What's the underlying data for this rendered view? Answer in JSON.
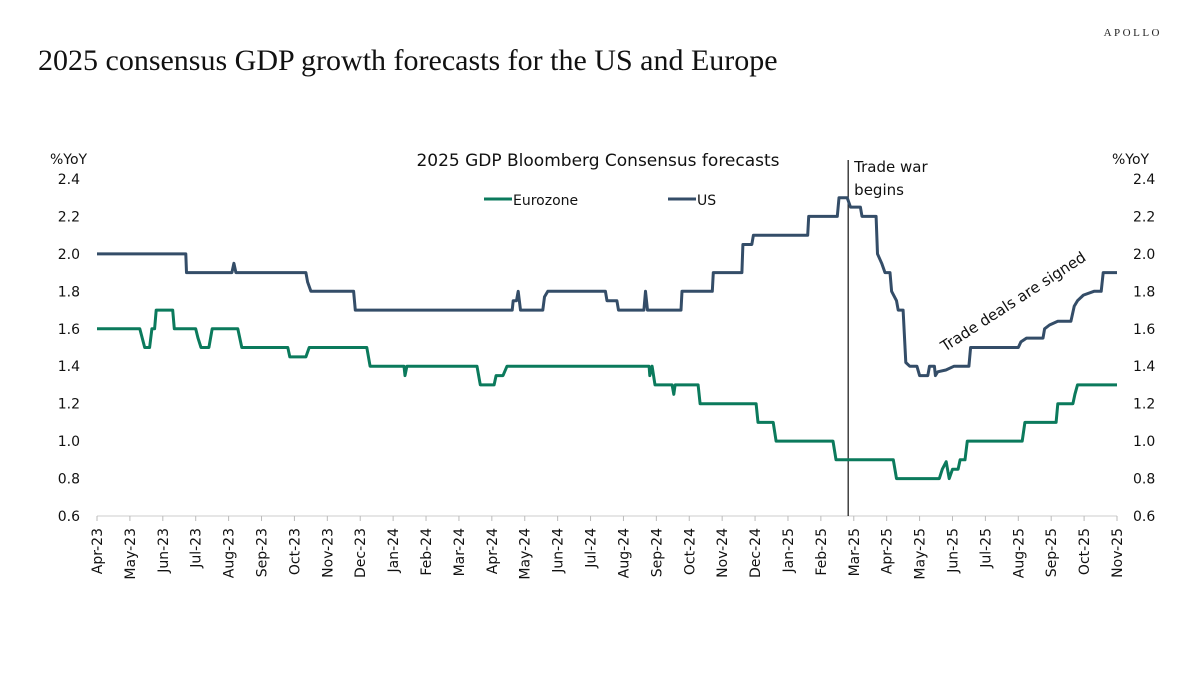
{
  "brand": "APOLLO",
  "title": "2025 consensus GDP growth forecasts for the US and Europe",
  "chart_data": {
    "type": "line",
    "title": "2025 GDP Bloomberg Consensus forecasts",
    "ylabel_left": "%YoY",
    "ylabel_right": "%YoY",
    "ylim": [
      0.6,
      2.4
    ],
    "yticks": [
      "0.6",
      "0.8",
      "1.0",
      "1.2",
      "1.4",
      "1.6",
      "1.8",
      "2.0",
      "2.2",
      "2.4"
    ],
    "categories": [
      "Apr-23",
      "May-23",
      "Jun-23",
      "Jul-23",
      "Aug-23",
      "Sep-23",
      "Oct-23",
      "Nov-23",
      "Dec-23",
      "Jan-24",
      "Feb-24",
      "Mar-24",
      "Apr-24",
      "May-24",
      "Jun-24",
      "Jul-24",
      "Aug-24",
      "Sep-24",
      "Oct-24",
      "Nov-24",
      "Dec-24",
      "Jan-25",
      "Feb-25",
      "Mar-25",
      "Apr-25",
      "May-25",
      "Jun-25",
      "Jul-25",
      "Aug-25",
      "Sep-25",
      "Oct-25",
      "Nov-25"
    ],
    "x_note": "x values are months since Apr-23",
    "series": [
      {
        "name": "Eurozone",
        "color": "#0b7a5c",
        "points": [
          [
            0,
            1.6
          ],
          [
            1.3,
            1.6
          ],
          [
            1.45,
            1.5
          ],
          [
            1.6,
            1.5
          ],
          [
            1.67,
            1.6
          ],
          [
            1.75,
            1.6
          ],
          [
            1.8,
            1.7
          ],
          [
            2.3,
            1.7
          ],
          [
            2.35,
            1.6
          ],
          [
            3,
            1.6
          ],
          [
            3.07,
            1.55
          ],
          [
            3.16,
            1.5
          ],
          [
            3.4,
            1.5
          ],
          [
            3.5,
            1.6
          ],
          [
            4.28,
            1.6
          ],
          [
            4.4,
            1.5
          ],
          [
            5.8,
            1.5
          ],
          [
            5.86,
            1.45
          ],
          [
            6.35,
            1.45
          ],
          [
            6.45,
            1.5
          ],
          [
            8.2,
            1.5
          ],
          [
            8.3,
            1.4
          ],
          [
            9.33,
            1.4
          ],
          [
            9.36,
            1.35
          ],
          [
            9.42,
            1.4
          ],
          [
            11.55,
            1.4
          ],
          [
            11.65,
            1.3
          ],
          [
            12.07,
            1.3
          ],
          [
            12.13,
            1.35
          ],
          [
            12.34,
            1.35
          ],
          [
            12.46,
            1.4
          ],
          [
            16.78,
            1.4
          ],
          [
            16.8,
            1.35
          ],
          [
            16.87,
            1.4
          ],
          [
            16.96,
            1.3
          ],
          [
            17.48,
            1.3
          ],
          [
            17.53,
            1.25
          ],
          [
            17.57,
            1.3
          ],
          [
            18.27,
            1.3
          ],
          [
            18.33,
            1.2
          ],
          [
            20.03,
            1.2
          ],
          [
            20.09,
            1.1
          ],
          [
            20.55,
            1.1
          ],
          [
            20.64,
            1.0
          ],
          [
            22.37,
            1.0
          ],
          [
            22.46,
            0.9
          ],
          [
            24.2,
            0.9
          ],
          [
            24.3,
            0.8
          ],
          [
            25.6,
            0.8
          ],
          [
            25.69,
            0.85
          ],
          [
            25.81,
            0.89
          ],
          [
            25.9,
            0.8
          ],
          [
            26.0,
            0.85
          ],
          [
            26.17,
            0.85
          ],
          [
            26.23,
            0.9
          ],
          [
            26.38,
            0.9
          ],
          [
            26.45,
            1.0
          ],
          [
            28.12,
            1.0
          ],
          [
            28.2,
            1.1
          ],
          [
            29.15,
            1.1
          ],
          [
            29.2,
            1.2
          ],
          [
            29.66,
            1.2
          ],
          [
            29.72,
            1.25
          ],
          [
            29.8,
            1.3
          ],
          [
            31,
            1.3
          ]
        ]
      },
      {
        "name": "US",
        "color": "#344d68",
        "points": [
          [
            0,
            2.0
          ],
          [
            2.7,
            2.0
          ],
          [
            2.72,
            1.9
          ],
          [
            4.1,
            1.9
          ],
          [
            4.16,
            1.95
          ],
          [
            4.22,
            1.9
          ],
          [
            6.35,
            1.9
          ],
          [
            6.4,
            1.85
          ],
          [
            6.5,
            1.8
          ],
          [
            7.8,
            1.8
          ],
          [
            7.85,
            1.7
          ],
          [
            12.62,
            1.7
          ],
          [
            12.65,
            1.75
          ],
          [
            12.75,
            1.75
          ],
          [
            12.8,
            1.8
          ],
          [
            12.87,
            1.7
          ],
          [
            13.55,
            1.7
          ],
          [
            13.6,
            1.77
          ],
          [
            13.7,
            1.8
          ],
          [
            15.45,
            1.8
          ],
          [
            15.5,
            1.75
          ],
          [
            15.8,
            1.75
          ],
          [
            15.85,
            1.7
          ],
          [
            16.62,
            1.7
          ],
          [
            16.67,
            1.8
          ],
          [
            16.73,
            1.7
          ],
          [
            17.75,
            1.7
          ],
          [
            17.78,
            1.8
          ],
          [
            18.7,
            1.8
          ],
          [
            18.73,
            1.9
          ],
          [
            19.6,
            1.9
          ],
          [
            19.63,
            2.05
          ],
          [
            19.9,
            2.05
          ],
          [
            19.95,
            2.1
          ],
          [
            21.6,
            2.1
          ],
          [
            21.63,
            2.2
          ],
          [
            22.5,
            2.2
          ],
          [
            22.55,
            2.3
          ],
          [
            22.8,
            2.3
          ],
          [
            22.9,
            2.25
          ],
          [
            23.2,
            2.25
          ],
          [
            23.25,
            2.2
          ],
          [
            23.68,
            2.2
          ],
          [
            23.72,
            2.0
          ],
          [
            23.85,
            1.95
          ],
          [
            23.95,
            1.9
          ],
          [
            24.1,
            1.9
          ],
          [
            24.15,
            1.8
          ],
          [
            24.3,
            1.75
          ],
          [
            24.35,
            1.7
          ],
          [
            24.5,
            1.7
          ],
          [
            24.58,
            1.42
          ],
          [
            24.7,
            1.4
          ],
          [
            24.92,
            1.4
          ],
          [
            25.0,
            1.35
          ],
          [
            25.25,
            1.35
          ],
          [
            25.3,
            1.4
          ],
          [
            25.45,
            1.4
          ],
          [
            25.48,
            1.35
          ],
          [
            25.55,
            1.37
          ],
          [
            25.8,
            1.38
          ],
          [
            26.05,
            1.4
          ],
          [
            26.5,
            1.4
          ],
          [
            26.55,
            1.5
          ],
          [
            28.0,
            1.5
          ],
          [
            28.08,
            1.53
          ],
          [
            28.25,
            1.55
          ],
          [
            28.75,
            1.55
          ],
          [
            28.8,
            1.6
          ],
          [
            28.95,
            1.62
          ],
          [
            29.2,
            1.64
          ],
          [
            29.6,
            1.64
          ],
          [
            29.7,
            1.72
          ],
          [
            29.8,
            1.75
          ],
          [
            29.98,
            1.78
          ],
          [
            30.3,
            1.8
          ],
          [
            30.52,
            1.8
          ],
          [
            30.58,
            1.9
          ],
          [
            31,
            1.9
          ]
        ]
      }
    ],
    "annotations": [
      {
        "text": "Trade war",
        "text2": "begins",
        "x": 22.83
      },
      {
        "text": "Trade deals are signed"
      }
    ],
    "legend_placement": "top-center"
  }
}
